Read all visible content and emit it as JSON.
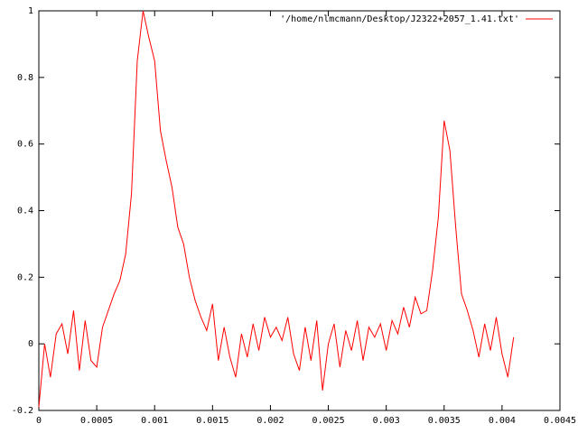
{
  "chart_data": {
    "type": "line",
    "series": [
      {
        "name": "'/home/nlmcmann/Desktop/J2322+2057_1.41.txt'",
        "color": "#ff0000",
        "x": [
          0,
          5e-05,
          0.0001,
          0.00015,
          0.0002,
          0.00025,
          0.0003,
          0.00035,
          0.0004,
          0.00045,
          0.0005,
          0.00055,
          0.0006,
          0.00065,
          0.0007,
          0.00075,
          0.0008,
          0.00085,
          0.0009,
          0.00095,
          0.001,
          0.00105,
          0.0011,
          0.00115,
          0.0012,
          0.00125,
          0.0013,
          0.00135,
          0.0014,
          0.00145,
          0.0015,
          0.00155,
          0.0016,
          0.00165,
          0.0017,
          0.00175,
          0.0018,
          0.00185,
          0.0019,
          0.00195,
          0.002,
          0.00205,
          0.0021,
          0.00215,
          0.0022,
          0.00225,
          0.0023,
          0.00235,
          0.0024,
          0.00245,
          0.0025,
          0.00255,
          0.0026,
          0.00265,
          0.0027,
          0.00275,
          0.0028,
          0.00285,
          0.0029,
          0.00295,
          0.003,
          0.00305,
          0.0031,
          0.00315,
          0.0032,
          0.00325,
          0.0033,
          0.00335,
          0.0034,
          0.00345,
          0.0035,
          0.00355,
          0.0036,
          0.00365,
          0.0037,
          0.00375,
          0.0038,
          0.00385,
          0.0039,
          0.00395,
          0.004,
          0.00405,
          0.0041
        ],
        "values": [
          -0.19,
          0.0,
          -0.1,
          0.03,
          0.06,
          -0.03,
          0.1,
          -0.08,
          0.07,
          -0.05,
          -0.07,
          0.05,
          0.1,
          0.15,
          0.19,
          0.27,
          0.45,
          0.85,
          1.0,
          0.92,
          0.85,
          0.64,
          0.55,
          0.47,
          0.35,
          0.3,
          0.2,
          0.13,
          0.08,
          0.04,
          0.12,
          -0.05,
          0.05,
          -0.04,
          -0.1,
          0.03,
          -0.04,
          0.06,
          -0.02,
          0.08,
          0.02,
          0.05,
          0.01,
          0.08,
          -0.03,
          -0.08,
          0.05,
          -0.05,
          0.07,
          -0.14,
          0.0,
          0.06,
          -0.07,
          0.04,
          -0.02,
          0.07,
          -0.05,
          0.05,
          0.02,
          0.06,
          -0.02,
          0.07,
          0.03,
          0.11,
          0.05,
          0.14,
          0.09,
          0.1,
          0.22,
          0.38,
          0.67,
          0.58,
          0.35,
          0.15,
          0.1,
          0.04,
          -0.04,
          0.06,
          -0.02,
          0.08,
          -0.03,
          -0.1,
          0.02
        ]
      }
    ],
    "xlim": [
      0,
      0.0045
    ],
    "xticks": [
      0,
      0.0005,
      0.001,
      0.0015,
      0.002,
      0.0025,
      0.003,
      0.0035,
      0.004,
      0.0045
    ],
    "ylim": [
      -0.2,
      1
    ],
    "yticks": [
      -0.2,
      0,
      0.2,
      0.4,
      0.6,
      0.8,
      1
    ],
    "grid": false,
    "legend": "top-right"
  }
}
